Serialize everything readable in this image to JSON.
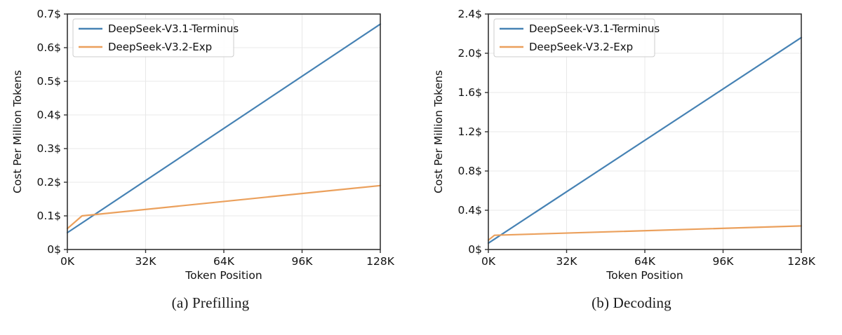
{
  "colors": {
    "series_blue": "#4682b4",
    "series_orange": "#eba05c",
    "grid": "#e8e8e8",
    "spine": "#333333",
    "legend_border": "#cccccc",
    "legend_fill": "#ffffff",
    "text": "#111111"
  },
  "chart_data": [
    {
      "id": "prefilling",
      "type": "line",
      "caption": "(a) Prefilling",
      "xlabel": "Token Position",
      "ylabel": "Cost Per Million Tokens",
      "xlim": [
        0,
        128
      ],
      "ylim": [
        0,
        0.7
      ],
      "grid": true,
      "legend_position": "upper-left",
      "xticks": [
        {
          "v": 0,
          "label": "0K"
        },
        {
          "v": 32,
          "label": "32K"
        },
        {
          "v": 64,
          "label": "64K"
        },
        {
          "v": 96,
          "label": "96K"
        },
        {
          "v": 128,
          "label": "128K"
        }
      ],
      "yticks": [
        {
          "v": 0.0,
          "label": "0$"
        },
        {
          "v": 0.1,
          "label": "0.1$"
        },
        {
          "v": 0.2,
          "label": "0.2$"
        },
        {
          "v": 0.3,
          "label": "0.3$"
        },
        {
          "v": 0.4,
          "label": "0.4$"
        },
        {
          "v": 0.5,
          "label": "0.5$"
        },
        {
          "v": 0.6,
          "label": "0.6$"
        },
        {
          "v": 0.7,
          "label": "0.7$"
        }
      ],
      "series": [
        {
          "name": "DeepSeek-V3.1-Terminus",
          "color": "#4682b4",
          "points": [
            [
              0,
              0.05
            ],
            [
              128,
              0.67
            ]
          ]
        },
        {
          "name": "DeepSeek-V3.2-Exp",
          "color": "#eba05c",
          "points": [
            [
              0,
              0.062
            ],
            [
              6,
              0.1
            ],
            [
              128,
              0.19
            ]
          ]
        }
      ]
    },
    {
      "id": "decoding",
      "type": "line",
      "caption": "(b) Decoding",
      "xlabel": "Token Position",
      "ylabel": "Cost Per Million Tokens",
      "xlim": [
        0,
        128
      ],
      "ylim": [
        0,
        2.4
      ],
      "grid": true,
      "legend_position": "upper-left",
      "xticks": [
        {
          "v": 0,
          "label": "0K"
        },
        {
          "v": 32,
          "label": "32K"
        },
        {
          "v": 64,
          "label": "64K"
        },
        {
          "v": 96,
          "label": "96K"
        },
        {
          "v": 128,
          "label": "128K"
        }
      ],
      "yticks": [
        {
          "v": 0.0,
          "label": "0$"
        },
        {
          "v": 0.4,
          "label": "0.4$"
        },
        {
          "v": 0.8,
          "label": "0.8$"
        },
        {
          "v": 1.2,
          "label": "1.2$"
        },
        {
          "v": 1.6,
          "label": "1.6$"
        },
        {
          "v": 2.0,
          "label": "2.0$"
        },
        {
          "v": 2.4,
          "label": "2.4$"
        }
      ],
      "series": [
        {
          "name": "DeepSeek-V3.1-Terminus",
          "color": "#4682b4",
          "points": [
            [
              0,
              0.065
            ],
            [
              128,
              2.16
            ]
          ]
        },
        {
          "name": "DeepSeek-V3.2-Exp",
          "color": "#eba05c",
          "points": [
            [
              0,
              0.095
            ],
            [
              2.5,
              0.145
            ],
            [
              128,
              0.24
            ]
          ]
        }
      ]
    }
  ]
}
